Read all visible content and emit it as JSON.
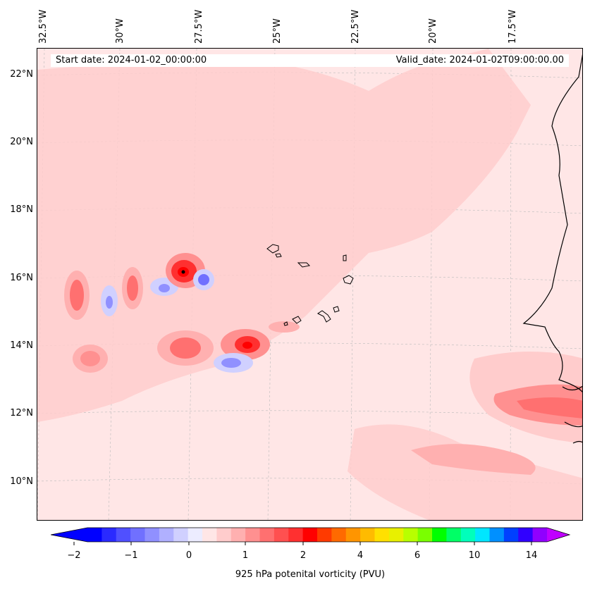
{
  "map": {
    "start_date": "Start date: 2024-01-02_00:00:00",
    "valid_date": "Valid_date: 2024-01-02T09:00:00.00",
    "lon_labels": [
      "32.5°W",
      "30°W",
      "27.5°W",
      "25°W",
      "22.5°W",
      "20°W",
      "17.5°W"
    ],
    "lat_labels": [
      "22°N",
      "20°N",
      "18°N",
      "16°N",
      "14°N",
      "12°N",
      "10°N"
    ],
    "coastline_color": "#000000",
    "gridline_color": "#bbbbbb"
  },
  "colorbar": {
    "label": "925 hPa potenital vorticity (PVU)",
    "tick_labels": [
      "−2",
      "−1",
      "0",
      "1",
      "2",
      "4",
      "6",
      "10",
      "14"
    ],
    "extend": "both",
    "colors": [
      "#0000ff",
      "#2a2aff",
      "#5050ff",
      "#7070ff",
      "#9090ff",
      "#b0b0ff",
      "#d0d0ff",
      "#ececff",
      "#ffe6e6",
      "#ffcccc",
      "#ffb0b0",
      "#ff9090",
      "#ff7070",
      "#ff5050",
      "#ff3030",
      "#ff0000",
      "#ff3a00",
      "#ff6a00",
      "#ff9500",
      "#ffbb00",
      "#ffe000",
      "#e8f000",
      "#b8ff00",
      "#7aff00",
      "#00ff00",
      "#00ff66",
      "#00ffbb",
      "#00e6ff",
      "#0090ff",
      "#0040ff",
      "#3000ff",
      "#9000ff"
    ],
    "under_color": "#0000ff",
    "over_color": "#c000ff"
  }
}
